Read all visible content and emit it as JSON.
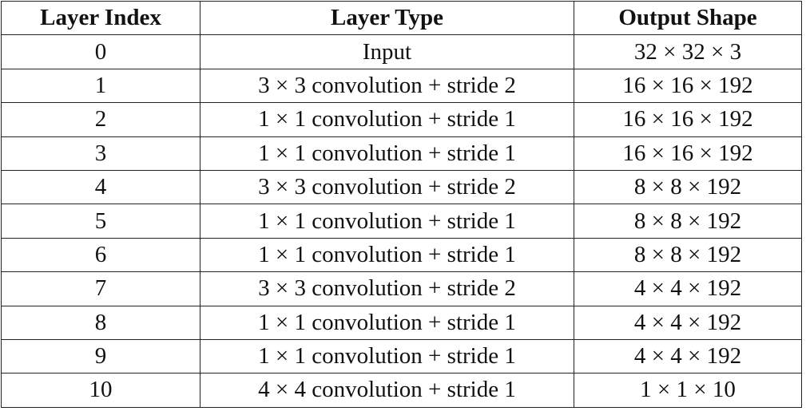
{
  "table": {
    "headers": [
      "Layer Index",
      "Layer Type",
      "Output Shape"
    ],
    "rows": [
      [
        "0",
        "Input",
        "32 × 32 × 3"
      ],
      [
        "1",
        "3 × 3 convolution + stride 2",
        "16 × 16 × 192"
      ],
      [
        "2",
        "1 × 1 convolution + stride 1",
        "16 × 16 × 192"
      ],
      [
        "3",
        "1 × 1 convolution + stride 1",
        "16 × 16 × 192"
      ],
      [
        "4",
        "3 × 3 convolution + stride 2",
        "8 × 8 × 192"
      ],
      [
        "5",
        "1 × 1 convolution + stride 1",
        "8 × 8 × 192"
      ],
      [
        "6",
        "1 × 1 convolution + stride 1",
        "8 × 8 × 192"
      ],
      [
        "7",
        "3 × 3 convolution + stride 2",
        "4 × 4 × 192"
      ],
      [
        "8",
        "1 × 1 convolution + stride 1",
        "4 × 4 × 192"
      ],
      [
        "9",
        "1 × 1 convolution + stride 1",
        "4 × 4 × 192"
      ],
      [
        "10",
        "4 × 4 convolution + stride 1",
        "1 × 1 × 10"
      ]
    ]
  }
}
